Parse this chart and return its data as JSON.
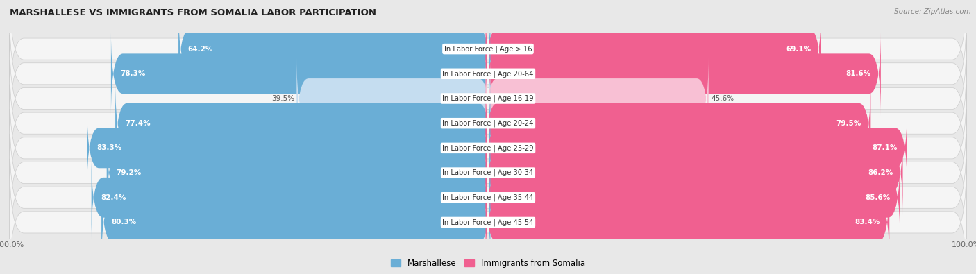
{
  "title": "MARSHALLESE VS IMMIGRANTS FROM SOMALIA LABOR PARTICIPATION",
  "source": "Source: ZipAtlas.com",
  "categories": [
    "In Labor Force | Age > 16",
    "In Labor Force | Age 20-64",
    "In Labor Force | Age 16-19",
    "In Labor Force | Age 20-24",
    "In Labor Force | Age 25-29",
    "In Labor Force | Age 30-34",
    "In Labor Force | Age 35-44",
    "In Labor Force | Age 45-54"
  ],
  "marshallese": [
    64.2,
    78.3,
    39.5,
    77.4,
    83.3,
    79.2,
    82.4,
    80.3
  ],
  "somalia": [
    69.1,
    81.6,
    45.6,
    79.5,
    87.1,
    86.2,
    85.6,
    83.4
  ],
  "marshallese_color": "#6aaed6",
  "marshallese_color_light": "#c5ddf0",
  "somalia_color": "#f06090",
  "somalia_color_light": "#f8c0d4",
  "bg_color": "#e8e8e8",
  "row_bg_color": "#f5f5f5",
  "figsize": [
    14.06,
    3.95
  ],
  "dpi": 100,
  "legend_marshallese": "Marshallese",
  "legend_somalia": "Immigrants from Somalia"
}
